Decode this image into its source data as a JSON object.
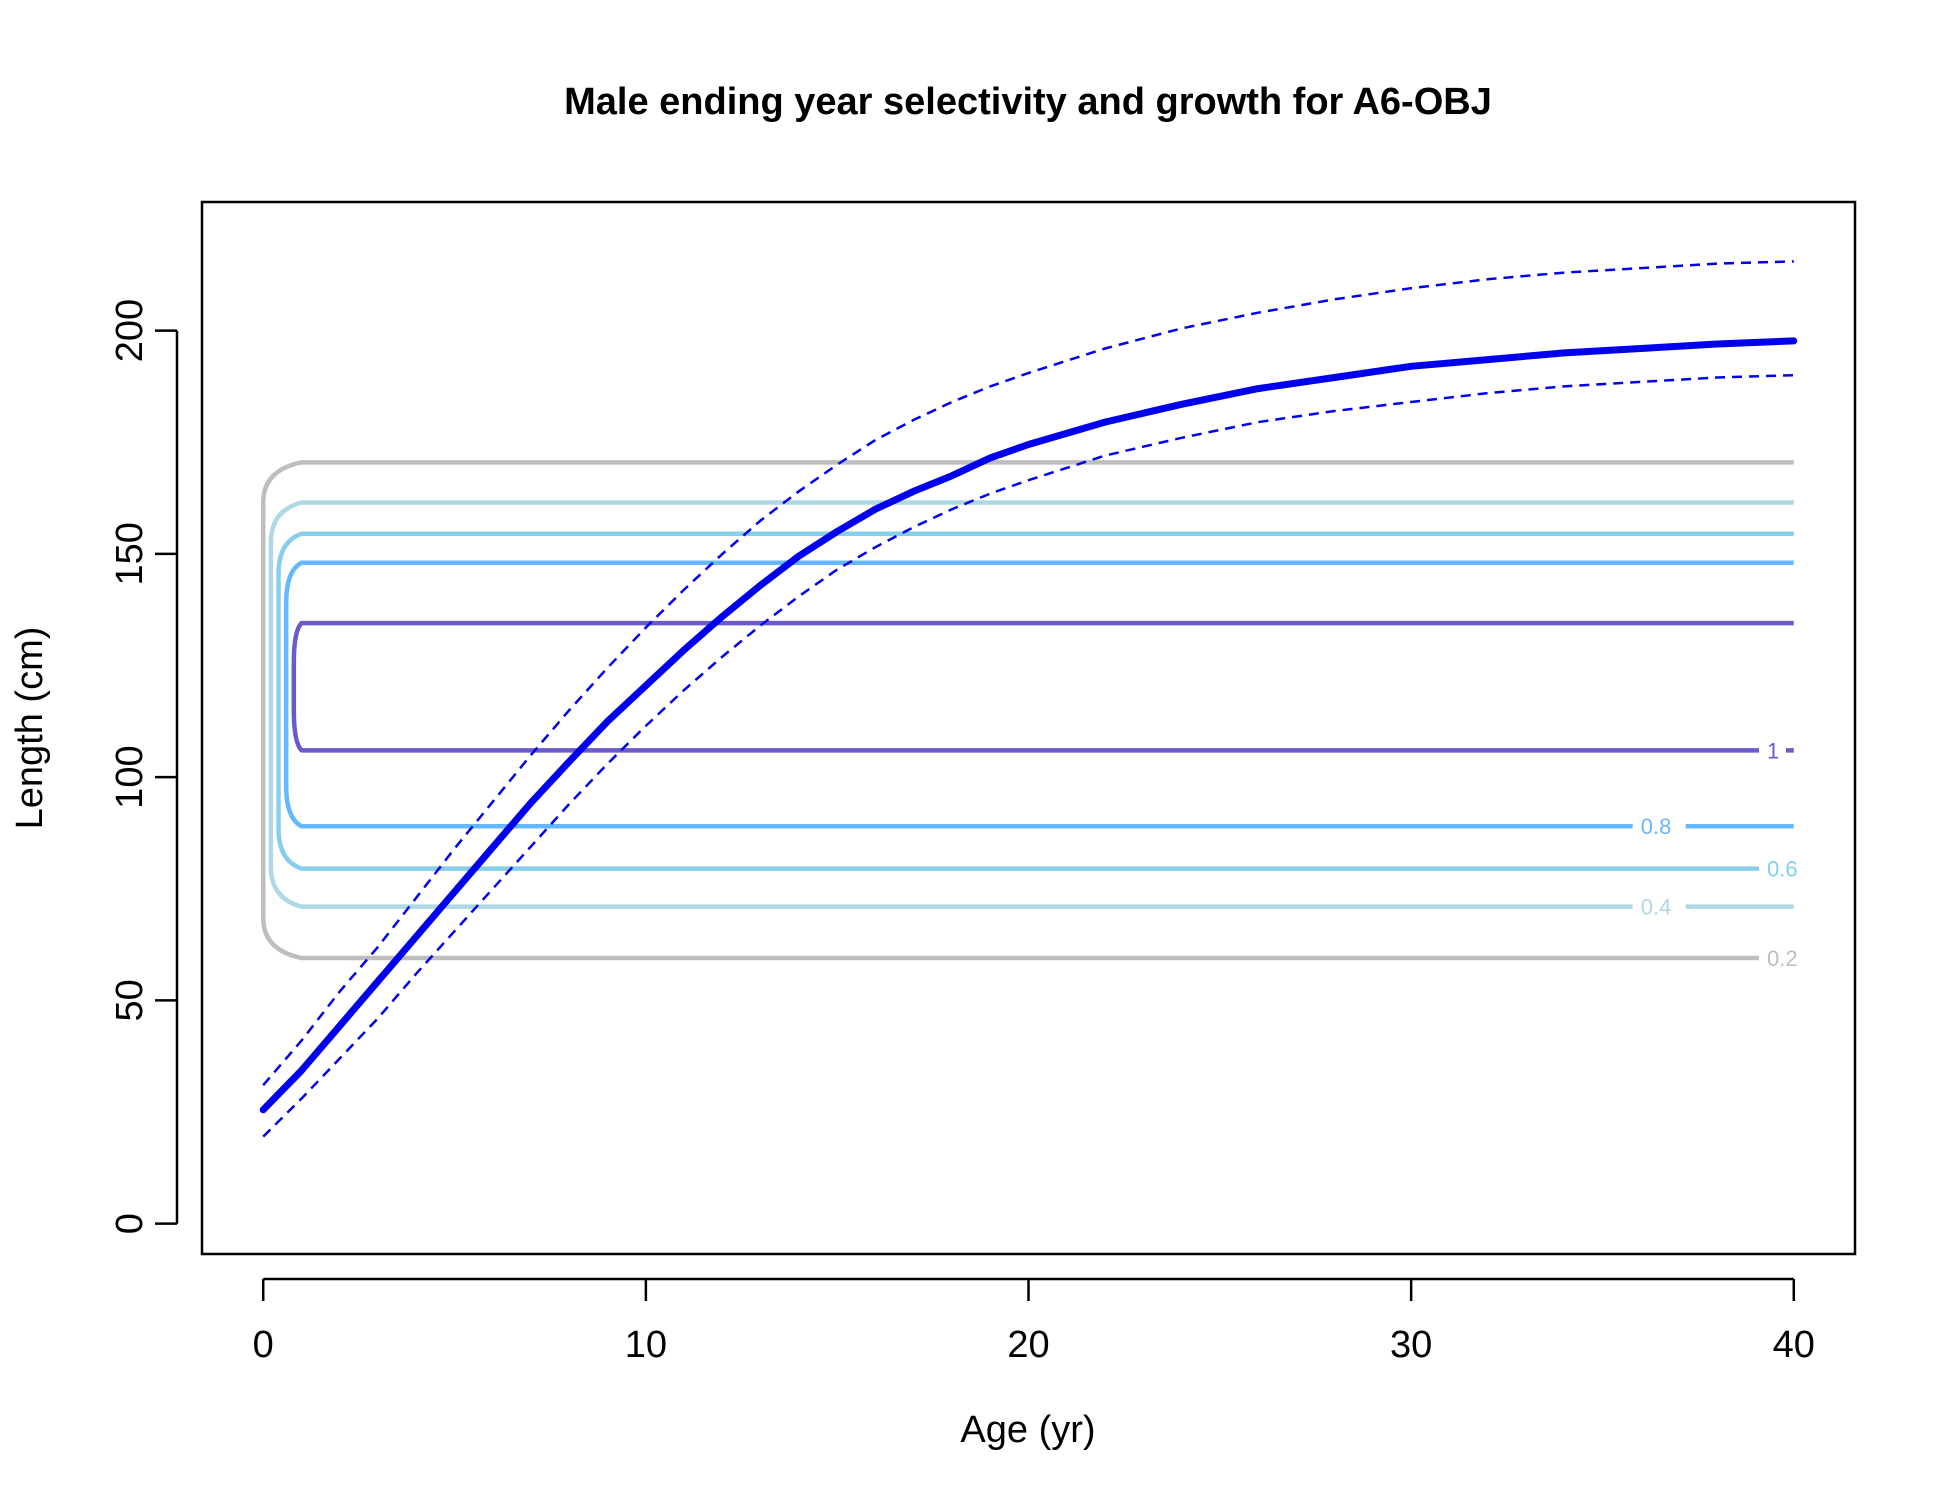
{
  "chart_data": {
    "type": "line",
    "title": "Male ending year selectivity and growth for A6-OBJ",
    "xlabel": "Age (yr)",
    "ylabel": "Length (cm)",
    "xlim": [
      -1.6,
      41.6
    ],
    "ylim": [
      -6.8,
      228.8
    ],
    "x_ticks": [
      0,
      10,
      20,
      30,
      40
    ],
    "y_ticks": [
      0,
      50,
      100,
      150,
      200
    ],
    "grid": false,
    "legend": "none",
    "growth": {
      "color": "#0000ee",
      "ages": [
        0,
        1,
        2,
        3,
        4,
        5,
        6,
        7,
        8,
        9,
        10,
        11,
        12,
        13,
        14,
        15,
        16,
        17,
        18,
        19,
        20,
        22,
        24,
        26,
        28,
        30,
        32,
        34,
        36,
        38,
        40
      ],
      "mean": [
        25.5,
        34.3,
        44.3,
        54.3,
        64.3,
        74.3,
        84.3,
        94.3,
        103.5,
        112.5,
        120.5,
        128.5,
        136,
        143,
        149.5,
        155,
        160,
        164,
        167.5,
        171.5,
        174.5,
        179.5,
        183.5,
        187,
        189.5,
        192,
        193.5,
        195,
        196,
        197,
        197.7
      ],
      "upper": [
        31,
        41,
        52,
        62,
        73,
        84,
        94.5,
        105,
        115,
        124.5,
        133.5,
        142,
        150,
        157.5,
        164,
        170,
        175.5,
        180,
        184,
        187.5,
        190.5,
        196,
        200.5,
        204,
        207,
        209.5,
        211.5,
        213,
        214,
        215,
        215.5
      ],
      "lower": [
        19.5,
        28,
        37,
        46,
        56,
        65.5,
        75,
        84.5,
        94,
        103,
        111.5,
        119.5,
        127,
        134,
        140.5,
        146.5,
        151.5,
        156,
        160,
        163.5,
        166.5,
        172,
        176,
        179.5,
        182,
        184,
        186,
        187.5,
        188.5,
        189.5,
        190
      ]
    },
    "selectivity_contours": [
      {
        "level": 0.2,
        "label": "0.2",
        "color": "#bebebe",
        "y_low": 59.5,
        "y_high": 170.5,
        "age_min": 1,
        "label_age": 39.3
      },
      {
        "level": 0.4,
        "label": "0.4",
        "color": "#add8e6",
        "y_low": 71,
        "y_high": 161.5,
        "age_min": 1,
        "label_age": 36.0
      },
      {
        "level": 0.6,
        "label": "0.6",
        "color": "#87ceeb",
        "y_low": 79.5,
        "y_high": 154.5,
        "age_min": 1,
        "label_age": 39.3
      },
      {
        "level": 0.8,
        "label": "0.8",
        "color": "#63b8ff",
        "y_low": 89,
        "y_high": 148,
        "age_min": 1,
        "label_age": 36.0
      },
      {
        "level": 1,
        "label": "1",
        "color": "#6a5acd",
        "y_low": 106,
        "y_high": 134.5,
        "age_min": 1,
        "label_age": 39.3
      }
    ]
  }
}
